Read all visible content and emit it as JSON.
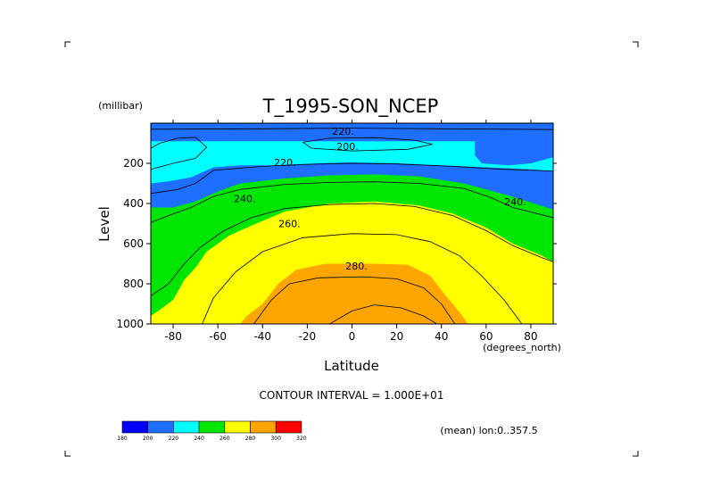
{
  "chart_data": {
    "type": "heatmap",
    "subtype": "filled-contour",
    "title": "T_1995-SON_NCEP",
    "xlabel": "Latitude",
    "x_units": "(degrees_north)",
    "ylabel": "Level",
    "y_units": "(millibar)",
    "xlim": [
      -90,
      90
    ],
    "ylim": [
      1000,
      0
    ],
    "y_reversed": true,
    "x_ticks": [
      -80,
      -60,
      -40,
      -20,
      0,
      20,
      40,
      60,
      80
    ],
    "y_ticks": [
      200,
      400,
      600,
      800,
      1000
    ],
    "contour_interval_label": "CONTOUR INTERVAL = 1.000E+01",
    "mean_note": "(mean) lon:0..357.5",
    "contour_labels": [
      {
        "text": "220.",
        "lat": -4,
        "level": 40
      },
      {
        "text": "200.",
        "lat": -2,
        "level": 115
      },
      {
        "text": "220.",
        "lat": -30,
        "level": 195
      },
      {
        "text": "240.",
        "lat": -48,
        "level": 375
      },
      {
        "text": "240.",
        "lat": 73,
        "level": 390
      },
      {
        "text": "260.",
        "lat": -28,
        "level": 500
      },
      {
        "text": "280.",
        "lat": 2,
        "level": 710
      }
    ],
    "legend": {
      "levels": [
        "180",
        "200",
        "220",
        "240",
        "260",
        "280",
        "300",
        "320"
      ],
      "colors": [
        "#0000ff",
        "#1e6eff",
        "#00ffff",
        "#00e600",
        "#ffff00",
        "#ffa500",
        "#ff0000"
      ]
    },
    "boundaries": [
      {
        "value": 200,
        "polygons": [
          [
            [
              -90,
              180
            ],
            [
              -86,
              190
            ],
            [
              -80,
              140
            ],
            [
              -76,
              100
            ],
            [
              -80,
              70
            ],
            [
              -90,
              60
            ]
          ],
          [
            [
              -15,
              110
            ],
            [
              -8,
              90
            ],
            [
              10,
              90
            ],
            [
              20,
              100
            ],
            [
              22,
              115
            ],
            [
              10,
              125
            ],
            [
              -12,
              125
            ]
          ]
        ]
      },
      {
        "value": 220,
        "polygons": [
          [
            [
              -90,
              300
            ],
            [
              -82,
              290
            ],
            [
              -72,
              270
            ],
            [
              -62,
              220
            ],
            [
              -50,
              210
            ],
            [
              -35,
              210
            ],
            [
              -15,
              200
            ],
            [
              0,
              195
            ],
            [
              20,
              200
            ],
            [
              40,
              210
            ],
            [
              60,
              220
            ],
            [
              80,
              230
            ],
            [
              90,
              240
            ],
            [
              90,
              170
            ],
            [
              80,
              200
            ],
            [
              70,
              210
            ],
            [
              58,
              200
            ],
            [
              55,
              160
            ],
            [
              55,
              90
            ],
            [
              -90,
              90
            ]
          ]
        ]
      },
      {
        "value": 240,
        "polygons": [
          [
            [
              -90,
              1000
            ],
            [
              -90,
              420
            ],
            [
              -80,
              420
            ],
            [
              -70,
              390
            ],
            [
              -60,
              340
            ],
            [
              -50,
              300
            ],
            [
              -30,
              275
            ],
            [
              -10,
              260
            ],
            [
              10,
              255
            ],
            [
              30,
              265
            ],
            [
              50,
              300
            ],
            [
              70,
              360
            ],
            [
              90,
              430
            ],
            [
              90,
              1000
            ]
          ]
        ]
      },
      {
        "value": 260,
        "polygons": [
          [
            [
              -90,
              1000
            ],
            [
              -90,
              960
            ],
            [
              -86,
              930
            ],
            [
              -80,
              880
            ],
            [
              -75,
              780
            ],
            [
              -70,
              720
            ],
            [
              -65,
              640
            ],
            [
              -55,
              560
            ],
            [
              -45,
              510
            ],
            [
              -30,
              440
            ],
            [
              -10,
              400
            ],
            [
              10,
              390
            ],
            [
              30,
              410
            ],
            [
              45,
              450
            ],
            [
              60,
              520
            ],
            [
              72,
              600
            ],
            [
              85,
              660
            ],
            [
              90,
              690
            ],
            [
              90,
              1000
            ]
          ]
        ]
      },
      {
        "value": 270,
        "polygons": [
          [
            [
              -90,
              1000
            ],
            [
              -70,
              1000
            ],
            [
              -66,
              860
            ],
            [
              -58,
              740
            ],
            [
              -48,
              650
            ],
            [
              -38,
              580
            ],
            [
              -20,
              520
            ],
            [
              0,
              500
            ],
            [
              20,
              505
            ],
            [
              35,
              540
            ],
            [
              48,
              610
            ],
            [
              58,
              700
            ],
            [
              68,
              820
            ],
            [
              78,
              940
            ],
            [
              86,
              1000
            ]
          ]
        ]
      },
      {
        "value": 280,
        "polygons": [
          [
            [
              -90,
              1000
            ],
            [
              -50,
              1000
            ],
            [
              -47,
              960
            ],
            [
              -40,
              900
            ],
            [
              -33,
              800
            ],
            [
              -25,
              730
            ],
            [
              -12,
              700
            ],
            [
              10,
              700
            ],
            [
              25,
              705
            ],
            [
              35,
              760
            ],
            [
              42,
              860
            ],
            [
              48,
              940
            ],
            [
              52,
              1000
            ]
          ]
        ]
      }
    ],
    "contour_lines": [
      [
        [
          -90,
          125
        ],
        [
          -86,
          100
        ],
        [
          -78,
          75
        ],
        [
          -70,
          70
        ],
        [
          -65,
          120
        ],
        [
          -70,
          175
        ],
        [
          -80,
          200
        ],
        [
          -90,
          230
        ]
      ],
      [
        [
          -90,
          350
        ],
        [
          -78,
          330
        ],
        [
          -70,
          300
        ],
        [
          -62,
          235
        ],
        [
          -40,
          215
        ],
        [
          -20,
          205
        ],
        [
          0,
          200
        ],
        [
          20,
          203
        ],
        [
          45,
          215
        ],
        [
          65,
          228
        ],
        [
          90,
          238
        ]
      ],
      [
        [
          -90,
          495
        ],
        [
          -82,
          460
        ],
        [
          -72,
          420
        ],
        [
          -62,
          365
        ],
        [
          -50,
          330
        ],
        [
          -30,
          305
        ],
        [
          -10,
          295
        ],
        [
          10,
          292
        ],
        [
          30,
          300
        ],
        [
          50,
          325
        ],
        [
          62,
          370
        ],
        [
          72,
          420
        ],
        [
          90,
          470
        ]
      ],
      [
        [
          -90,
          860
        ],
        [
          -82,
          800
        ],
        [
          -75,
          700
        ],
        [
          -68,
          620
        ],
        [
          -58,
          540
        ],
        [
          -45,
          470
        ],
        [
          -30,
          425
        ],
        [
          -10,
          405
        ],
        [
          10,
          400
        ],
        [
          28,
          415
        ],
        [
          45,
          460
        ],
        [
          60,
          535
        ],
        [
          72,
          610
        ],
        [
          85,
          670
        ],
        [
          90,
          690
        ]
      ],
      [
        [
          -67,
          1000
        ],
        [
          -62,
          870
        ],
        [
          -52,
          740
        ],
        [
          -40,
          640
        ],
        [
          -22,
          570
        ],
        [
          0,
          550
        ],
        [
          20,
          555
        ],
        [
          35,
          590
        ],
        [
          48,
          660
        ],
        [
          58,
          760
        ],
        [
          68,
          880
        ],
        [
          76,
          1000
        ]
      ],
      [
        [
          -44,
          1000
        ],
        [
          -36,
          880
        ],
        [
          -28,
          800
        ],
        [
          -15,
          770
        ],
        [
          5,
          765
        ],
        [
          20,
          775
        ],
        [
          32,
          820
        ],
        [
          40,
          900
        ],
        [
          46,
          1000
        ]
      ],
      [
        [
          -10,
          1000
        ],
        [
          0,
          935
        ],
        [
          10,
          905
        ],
        [
          22,
          920
        ],
        [
          32,
          960
        ],
        [
          38,
          1000
        ]
      ],
      [
        [
          -22,
          95
        ],
        [
          -10,
          75
        ],
        [
          10,
          72
        ],
        [
          28,
          85
        ],
        [
          36,
          105
        ],
        [
          25,
          130
        ],
        [
          0,
          138
        ],
        [
          -18,
          125
        ],
        [
          -22,
          95
        ]
      ],
      [
        [
          -90,
          30
        ],
        [
          -40,
          28
        ],
        [
          0,
          25
        ],
        [
          40,
          28
        ],
        [
          90,
          32
        ]
      ]
    ]
  }
}
